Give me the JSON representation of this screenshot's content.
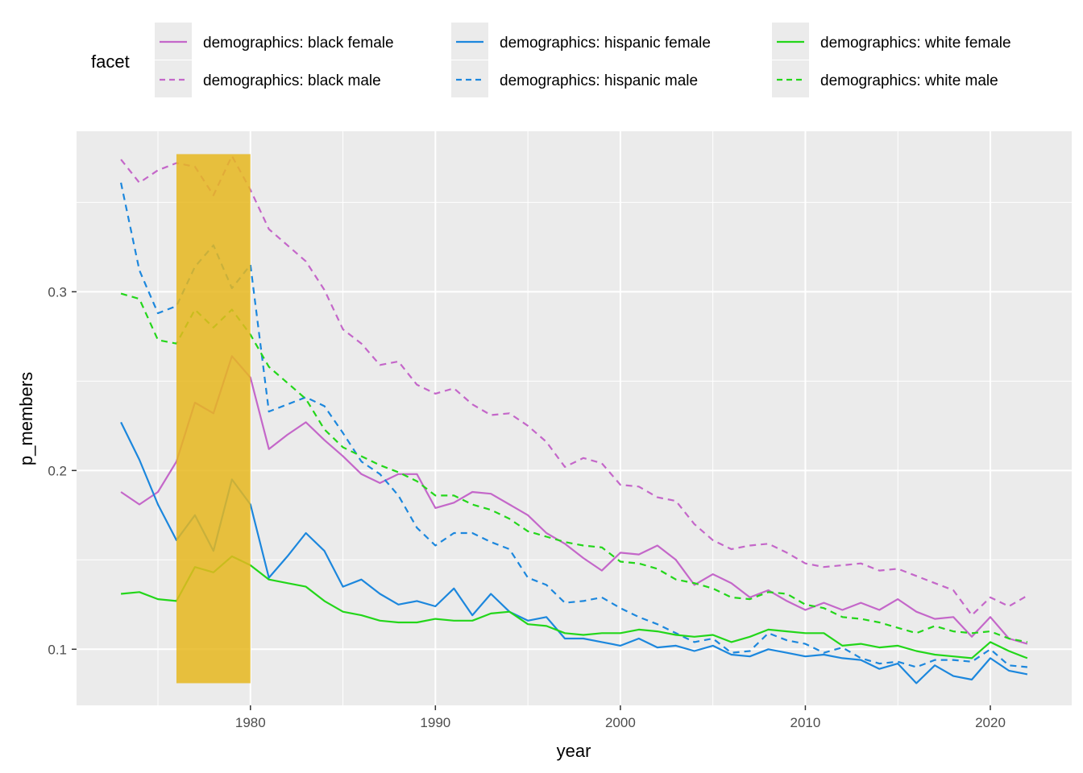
{
  "chart_data": {
    "type": "line",
    "xlabel": "year",
    "ylabel": "p_members",
    "xlim": [
      1970.6,
      1924.4
    ],
    "ylim": [
      0.0686,
      0.3898
    ],
    "x_ticks": [
      1980,
      1990,
      2000,
      2010,
      2020
    ],
    "x_tick_labels": [
      "1980",
      "1990",
      "2000",
      "2010",
      "2020"
    ],
    "y_ticks": [
      0.1,
      0.2,
      0.3
    ],
    "y_tick_labels": [
      "0.1",
      "0.2",
      "0.3"
    ],
    "grid": true,
    "legend": {
      "title": "facet",
      "position": "top"
    },
    "highlight": {
      "x_start": 1976,
      "x_end": 1980,
      "y_start": 0.081,
      "y_end": 0.377,
      "color": "#E6B71E"
    },
    "x": [
      1973,
      1974,
      1975,
      1976,
      1977,
      1978,
      1979,
      1980,
      1981,
      1982,
      1983,
      1984,
      1985,
      1986,
      1987,
      1988,
      1989,
      1990,
      1991,
      1992,
      1993,
      1994,
      1995,
      1996,
      1997,
      1998,
      1999,
      2000,
      2001,
      2002,
      2003,
      2004,
      2005,
      2006,
      2007,
      2008,
      2009,
      2010,
      2011,
      2012,
      2013,
      2014,
      2015,
      2016,
      2017,
      2018,
      2019,
      2020,
      2021,
      2022
    ],
    "series": [
      {
        "name": "demographics: black female",
        "color": "#C467C9",
        "dash": "solid",
        "values": [
          0.188,
          0.181,
          0.188,
          0.205,
          0.238,
          0.232,
          0.264,
          0.252,
          0.212,
          0.22,
          0.227,
          0.217,
          0.208,
          0.198,
          0.193,
          0.198,
          0.198,
          0.179,
          0.182,
          0.188,
          0.187,
          0.181,
          0.175,
          0.165,
          0.159,
          0.151,
          0.144,
          0.154,
          0.153,
          0.158,
          0.15,
          0.136,
          0.142,
          0.137,
          0.129,
          0.133,
          0.127,
          0.122,
          0.126,
          0.122,
          0.126,
          0.122,
          0.128,
          0.121,
          0.117,
          0.118,
          0.107,
          0.118,
          0.106,
          0.103
        ]
      },
      {
        "name": "demographics: black male",
        "color": "#C467C9",
        "dash": "dashed",
        "values": [
          0.374,
          0.361,
          0.368,
          0.372,
          0.37,
          0.354,
          0.376,
          0.357,
          0.335,
          0.326,
          0.317,
          0.301,
          0.279,
          0.271,
          0.259,
          0.261,
          0.248,
          0.243,
          0.246,
          0.237,
          0.231,
          0.232,
          0.225,
          0.216,
          0.202,
          0.207,
          0.204,
          0.192,
          0.191,
          0.185,
          0.183,
          0.17,
          0.161,
          0.156,
          0.158,
          0.159,
          0.154,
          0.148,
          0.146,
          0.147,
          0.148,
          0.144,
          0.145,
          0.141,
          0.137,
          0.133,
          0.119,
          0.129,
          0.124,
          0.13
        ]
      },
      {
        "name": "demographics: hispanic female",
        "color": "#1C87DD",
        "dash": "solid",
        "values": [
          0.227,
          0.206,
          0.181,
          0.161,
          0.175,
          0.155,
          0.195,
          0.181,
          0.14,
          0.152,
          0.165,
          0.155,
          0.135,
          0.139,
          0.131,
          0.125,
          0.127,
          0.124,
          0.134,
          0.119,
          0.131,
          0.121,
          0.116,
          0.118,
          0.106,
          0.106,
          0.104,
          0.102,
          0.106,
          0.101,
          0.102,
          0.099,
          0.102,
          0.097,
          0.096,
          0.1,
          0.098,
          0.096,
          0.097,
          0.095,
          0.094,
          0.089,
          0.092,
          0.081,
          0.091,
          0.085,
          0.083,
          0.095,
          0.088,
          0.086
        ]
      },
      {
        "name": "demographics: hispanic male",
        "color": "#1C87DD",
        "dash": "dashed",
        "values": [
          0.361,
          0.312,
          0.288,
          0.292,
          0.314,
          0.326,
          0.302,
          0.315,
          0.233,
          0.237,
          0.241,
          0.236,
          0.221,
          0.205,
          0.198,
          0.186,
          0.168,
          0.158,
          0.165,
          0.165,
          0.16,
          0.156,
          0.14,
          0.136,
          0.126,
          0.127,
          0.129,
          0.123,
          0.118,
          0.114,
          0.109,
          0.104,
          0.106,
          0.098,
          0.099,
          0.109,
          0.105,
          0.103,
          0.098,
          0.101,
          0.095,
          0.092,
          0.093,
          0.09,
          0.094,
          0.094,
          0.093,
          0.1,
          0.091,
          0.09
        ]
      },
      {
        "name": "demographics: white female",
        "color": "#23D61A",
        "dash": "solid",
        "values": [
          0.131,
          0.132,
          0.128,
          0.127,
          0.146,
          0.143,
          0.152,
          0.147,
          0.139,
          0.137,
          0.135,
          0.127,
          0.121,
          0.119,
          0.116,
          0.115,
          0.115,
          0.117,
          0.116,
          0.116,
          0.12,
          0.121,
          0.114,
          0.113,
          0.109,
          0.108,
          0.109,
          0.109,
          0.111,
          0.11,
          0.108,
          0.107,
          0.108,
          0.104,
          0.107,
          0.111,
          0.11,
          0.109,
          0.109,
          0.102,
          0.103,
          0.101,
          0.102,
          0.099,
          0.097,
          0.096,
          0.095,
          0.104,
          0.099,
          0.095
        ]
      },
      {
        "name": "demographics: white male",
        "color": "#23D61A",
        "dash": "dashed",
        "values": [
          0.299,
          0.296,
          0.273,
          0.271,
          0.29,
          0.28,
          0.29,
          0.276,
          0.258,
          0.249,
          0.24,
          0.223,
          0.213,
          0.208,
          0.203,
          0.199,
          0.194,
          0.186,
          0.186,
          0.181,
          0.178,
          0.173,
          0.166,
          0.163,
          0.16,
          0.158,
          0.157,
          0.149,
          0.148,
          0.145,
          0.139,
          0.137,
          0.134,
          0.129,
          0.128,
          0.132,
          0.131,
          0.125,
          0.123,
          0.118,
          0.117,
          0.115,
          0.112,
          0.109,
          0.113,
          0.11,
          0.109,
          0.11,
          0.106,
          0.104
        ]
      }
    ]
  }
}
